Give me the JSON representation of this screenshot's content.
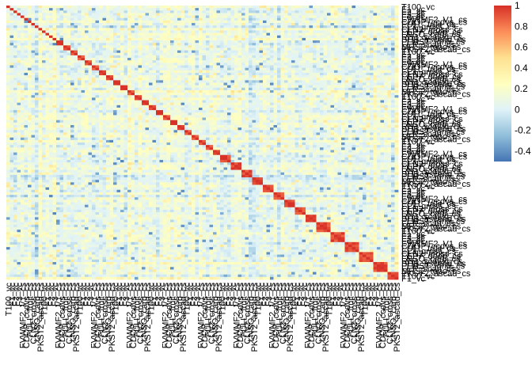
{
  "chart_data": {
    "type": "heatmap",
    "title": "",
    "xlabel": "",
    "ylabel": "",
    "grid": false,
    "legend_placement": "top-right",
    "colorscale": {
      "min": -0.5,
      "max": 1.0,
      "colors": [
        "#4575b4",
        "#91bfdb",
        "#e0f3f8",
        "#ffffbf",
        "#fee090",
        "#fc8d59",
        "#d73027"
      ],
      "ticks": [
        -0.4,
        -0.2,
        0,
        0.2,
        0.4,
        0.6,
        0.8,
        1
      ],
      "tick_labels": [
        "-0.4",
        "-0.2",
        "0",
        "0.2",
        "0.4",
        "0.6",
        "0.8",
        "1"
      ]
    },
    "diagonal_value": 1,
    "row_label_samples": [
      "T100_vc",
      "F1_vc",
      "F2_vc",
      "F3_vc",
      "F4_vc",
      "FVWMF2_V1_cs",
      "CDOP_ccdvs_cs",
      "FULL_fruit_cs",
      "FL3_gross_cs",
      "CLN2_cross_cs",
      "FEP7_deep_cs",
      "LNSQ_carb_cs",
      "RH1_scaled_cs",
      "SHB_ascend_cs",
      "FLMST_long_cs",
      "FEP_scan_cs",
      "MRS2_topo_cs",
      "PKST2_ascad_cs"
    ],
    "column_label_samples": [
      "T100_vc",
      "F1_vc",
      "F2_vc",
      "F3_vc",
      "FVWMF2_V1_cs",
      "CDOP_ccdvs_cs",
      "FULL_fruit_cs",
      "CLN2_cross_cs",
      "LNSQ_carb_cs",
      "PKST2_ascad_cs"
    ]
  }
}
